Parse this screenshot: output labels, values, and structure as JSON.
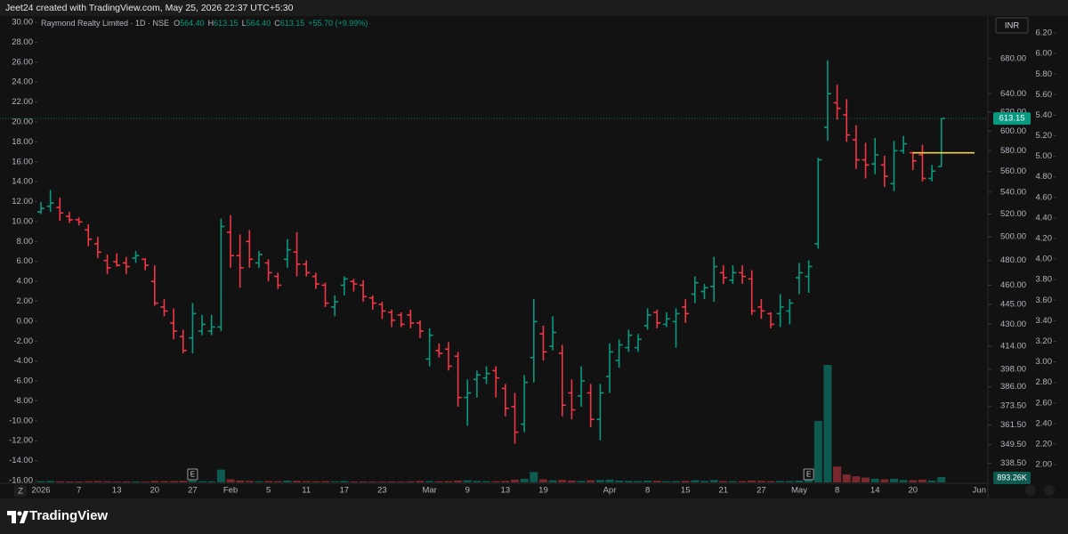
{
  "header": "Jeet24 created with TradingView.com, May 25, 2026 22:37 UTC+5:30",
  "footer_brand": "TradingView",
  "chart_data": {
    "type": "ohlc",
    "legend_name": "Raymond Realty Limited · 1D · NSE",
    "legend_items": [
      {
        "label": "O",
        "value": "564.40"
      },
      {
        "label": "H",
        "value": "613.15"
      },
      {
        "label": "L",
        "value": "564.40"
      },
      {
        "label": "C",
        "value": "613.15"
      }
    ],
    "legend_change": "+55.70 (+9.99%)",
    "currency": "INR",
    "last_price_label": "613.15",
    "volume_label": "893.26K",
    "time_button": "Z",
    "up_color": "#089981",
    "down_color": "#f23645",
    "volume_up_color": "#0e5a51",
    "volume_down_color": "#7a2a2f",
    "drawing_price": 578,
    "drawing_color": "#f5d142",
    "log_scale": true,
    "ylim": [
      327.4,
      731.7
    ],
    "yticks": [
      {
        "value": 680,
        "label": "680.00"
      },
      {
        "value": 640,
        "label": "640.00"
      },
      {
        "value": 620,
        "label": "620.00"
      },
      {
        "value": 600,
        "label": "600.00"
      },
      {
        "value": 580,
        "label": "580.00"
      },
      {
        "value": 560,
        "label": "560.00"
      },
      {
        "value": 540,
        "label": "540.00"
      },
      {
        "value": 520,
        "label": "520.00"
      },
      {
        "value": 500,
        "label": "500.00"
      },
      {
        "value": 480,
        "label": "480.00"
      },
      {
        "value": 460,
        "label": "460.00"
      },
      {
        "value": 445,
        "label": "445.00"
      },
      {
        "value": 430,
        "label": "430.00"
      },
      {
        "value": 414,
        "label": "414.00"
      },
      {
        "value": 398,
        "label": "398.00"
      },
      {
        "value": 386,
        "label": "386.00"
      },
      {
        "value": 373.5,
        "label": "373.50"
      },
      {
        "value": 361.5,
        "label": "361.50"
      },
      {
        "value": 349.5,
        "label": "349.50"
      },
      {
        "value": 338.5,
        "label": "338.50"
      }
    ],
    "y2lim": [
      -16.18,
      30.63
    ],
    "y2ticks": [
      {
        "value": 30,
        "label": "30.00"
      },
      {
        "value": 28,
        "label": "28.00"
      },
      {
        "value": 26,
        "label": "26.00"
      },
      {
        "value": 24,
        "label": "24.00"
      },
      {
        "value": 22,
        "label": "22.00"
      },
      {
        "value": 20,
        "label": "20.00"
      },
      {
        "value": 18,
        "label": "18.00"
      },
      {
        "value": 16,
        "label": "16.00"
      },
      {
        "value": 14,
        "label": "14.00"
      },
      {
        "value": 12,
        "label": "12.00"
      },
      {
        "value": 10,
        "label": "10.00"
      },
      {
        "value": 8,
        "label": "8.00"
      },
      {
        "value": 6,
        "label": "6.00"
      },
      {
        "value": 4,
        "label": "4.00"
      },
      {
        "value": 2,
        "label": "2.00"
      },
      {
        "value": 0,
        "label": "0.00"
      },
      {
        "value": -2,
        "label": "-2.00"
      },
      {
        "value": -4,
        "label": "-4.00"
      },
      {
        "value": -6,
        "label": "-6.00"
      },
      {
        "value": -8,
        "label": "-8.00"
      },
      {
        "value": -10,
        "label": "-10.00"
      },
      {
        "value": -12,
        "label": "-12.00"
      },
      {
        "value": -14,
        "label": "-14.00"
      },
      {
        "value": -16,
        "label": "-16.00"
      }
    ],
    "y3lim": [
      1.827,
      6.365
    ],
    "y3ticks": [
      {
        "value": 6.2,
        "label": "6.20"
      },
      {
        "value": 6,
        "label": "6.00"
      },
      {
        "value": 5.8,
        "label": "5.80"
      },
      {
        "value": 5.6,
        "label": "5.60"
      },
      {
        "value": 5.4,
        "label": "5.40"
      },
      {
        "value": 5.2,
        "label": "5.20"
      },
      {
        "value": 5,
        "label": "5.00"
      },
      {
        "value": 4.8,
        "label": "4.80"
      },
      {
        "value": 4.6,
        "label": "4.60"
      },
      {
        "value": 4.4,
        "label": "4.40"
      },
      {
        "value": 4.2,
        "label": "4.20"
      },
      {
        "value": 4,
        "label": "4.00"
      },
      {
        "value": 3.8,
        "label": "3.80"
      },
      {
        "value": 3.6,
        "label": "3.60"
      },
      {
        "value": 3.4,
        "label": "3.40"
      },
      {
        "value": 3.2,
        "label": "3.20"
      },
      {
        "value": 3,
        "label": "3.00"
      },
      {
        "value": 2.8,
        "label": "2.80"
      },
      {
        "value": 2.6,
        "label": "2.60"
      },
      {
        "value": 2.4,
        "label": "2.40"
      },
      {
        "value": 2.2,
        "label": "2.20"
      },
      {
        "value": 2,
        "label": "2.00"
      }
    ],
    "categories": [
      "2026",
      null,
      null,
      null,
      "7",
      null,
      null,
      null,
      "13",
      null,
      null,
      null,
      "20",
      null,
      null,
      null,
      "27",
      null,
      null,
      null,
      "Feb",
      null,
      null,
      null,
      "5",
      null,
      null,
      null,
      "11",
      null,
      null,
      null,
      "17",
      null,
      null,
      null,
      "23",
      null,
      null,
      null,
      null,
      "Mar",
      null,
      null,
      null,
      "9",
      null,
      null,
      null,
      "13",
      null,
      null,
      null,
      "19",
      null,
      null,
      null,
      null,
      null,
      null,
      "Apr",
      null,
      null,
      null,
      "8",
      null,
      null,
      null,
      "15",
      null,
      null,
      null,
      "21",
      null,
      null,
      null,
      "27",
      null,
      null,
      null,
      "May",
      null,
      null,
      null,
      "8",
      null,
      null,
      null,
      "14",
      null,
      null,
      null,
      "20",
      null,
      null,
      null,
      null,
      null,
      null,
      "Jun"
    ],
    "earnings_markers": [
      null,
      null,
      null,
      null,
      null,
      null,
      null,
      null,
      null,
      null,
      null,
      null,
      null,
      null,
      null,
      null,
      "E",
      null,
      null,
      null,
      null,
      null,
      null,
      null,
      null,
      null,
      null,
      null,
      null,
      null,
      null,
      null,
      null,
      null,
      null,
      null,
      null,
      null,
      null,
      null,
      null,
      null,
      null,
      null,
      null,
      null,
      null,
      null,
      null,
      null,
      null,
      null,
      null,
      null,
      null,
      null,
      null,
      null,
      null,
      null,
      null,
      null,
      null,
      null,
      null,
      null,
      null,
      null,
      null,
      null,
      null,
      null,
      null,
      null,
      null,
      null,
      null,
      null,
      null,
      null,
      null,
      "E",
      null,
      null,
      null,
      null,
      null,
      null,
      null,
      null,
      null,
      null,
      null,
      null,
      null,
      null,
      null,
      null,
      null,
      null
    ],
    "open": [
      522,
      527,
      526,
      518,
      515,
      506,
      494,
      480,
      479,
      478,
      482,
      481,
      463,
      443,
      431,
      421,
      420,
      425,
      425,
      428,
      504,
      484,
      496,
      478,
      478,
      467,
      481,
      487,
      477,
      467,
      460,
      443,
      460,
      463,
      460,
      450,
      445,
      439,
      437,
      437,
      431,
      405,
      411,
      412,
      407,
      379,
      391,
      392,
      397,
      385,
      373,
      362,
      406,
      423,
      414,
      409,
      382,
      380,
      382,
      365,
      393,
      404,
      413,
      413,
      429,
      439,
      430,
      432,
      443,
      453,
      455,
      459,
      470,
      464,
      470,
      465,
      443,
      438,
      438,
      440,
      466,
      467,
      494,
      604,
      630,
      617,
      591,
      571,
      567,
      566,
      548,
      580,
      578,
      576,
      553,
      564.4,
      null,
      null,
      null,
      null
    ],
    "high": [
      531,
      542,
      535,
      522,
      517,
      511,
      500,
      485,
      486,
      483,
      488,
      482,
      476,
      449,
      442,
      426,
      446,
      437,
      437,
      516,
      519,
      502,
      506,
      488,
      481,
      470,
      498,
      504,
      480,
      470,
      462,
      452,
      467,
      465,
      464,
      452,
      447,
      441,
      439,
      441,
      433,
      427,
      416,
      417,
      410,
      391,
      397,
      400,
      400,
      388,
      382,
      394,
      449,
      429,
      436,
      415,
      391,
      400,
      388,
      388,
      416,
      419,
      426,
      423,
      442,
      441,
      439,
      442,
      449,
      467,
      461,
      483,
      476,
      476,
      476,
      472,
      449,
      439,
      453,
      449,
      478,
      480,
      573,
      678,
      650,
      634,
      606,
      588,
      593,
      575,
      590,
      595,
      579,
      586,
      566,
      613.15,
      null,
      null,
      null,
      null
    ],
    "low": [
      520,
      522,
      514,
      512,
      510,
      492,
      482,
      469,
      475,
      469,
      478,
      472,
      444,
      436,
      419,
      409,
      409,
      422,
      422,
      425,
      474,
      458,
      474,
      474,
      463,
      457,
      474,
      467,
      467,
      457,
      443,
      436,
      452,
      455,
      447,
      441,
      434,
      428,
      428,
      427,
      420,
      400,
      406,
      397,
      373,
      361,
      379,
      388,
      379,
      367,
      350,
      357,
      389,
      404,
      411,
      367,
      365,
      373,
      360,
      352,
      382,
      399,
      410,
      410,
      426,
      427,
      428,
      413,
      431,
      446,
      449,
      447,
      461,
      461,
      461,
      437,
      434,
      427,
      428,
      430,
      453,
      454,
      490,
      590,
      612,
      589,
      562,
      553,
      557,
      545,
      541,
      577,
      561,
      550,
      550,
      564.4,
      null,
      null,
      null,
      null
    ],
    "close": [
      525,
      530,
      521,
      515,
      513,
      498,
      487,
      474,
      476,
      475,
      484,
      476,
      446,
      440,
      425,
      411,
      438,
      430,
      428,
      509,
      484,
      474,
      481,
      485,
      470,
      460,
      489,
      477,
      470,
      461,
      446,
      447,
      465,
      461,
      451,
      446,
      440,
      433,
      430,
      431,
      425,
      422,
      409,
      400,
      379,
      382,
      394,
      395,
      392,
      372,
      357,
      389,
      432,
      410,
      424,
      374,
      371,
      390,
      365,
      382,
      410,
      415,
      422,
      419,
      437,
      431,
      434,
      438,
      438,
      462,
      458,
      475,
      466,
      470,
      467,
      440,
      440,
      430,
      443,
      446,
      470,
      475,
      571,
      640,
      624,
      596,
      571,
      566,
      576,
      555,
      580,
      587,
      570,
      553,
      560,
      613.15,
      null,
      null,
      null,
      null
    ],
    "volume": [
      200000,
      250000,
      180000,
      150000,
      150000,
      200000,
      220000,
      180000,
      150000,
      160000,
      150000,
      140000,
      250000,
      200000,
      220000,
      250000,
      300000,
      200000,
      180000,
      2100000,
      500000,
      300000,
      250000,
      200000,
      220000,
      200000,
      300000,
      250000,
      200000,
      180000,
      200000,
      180000,
      220000,
      160000,
      170000,
      160000,
      150000,
      160000,
      150000,
      170000,
      250000,
      220000,
      180000,
      200000,
      300000,
      350000,
      250000,
      200000,
      200000,
      250000,
      450000,
      600000,
      1700000,
      500000,
      350000,
      400000,
      300000,
      250000,
      350000,
      400000,
      450000,
      300000,
      250000,
      220000,
      300000,
      250000,
      200000,
      220000,
      250000,
      350000,
      250000,
      400000,
      220000,
      200000,
      200000,
      300000,
      250000,
      200000,
      250000,
      220000,
      300000,
      1300000,
      10100000,
      19300000,
      2600000,
      1300000,
      1000000,
      800000,
      600000,
      500000,
      600000,
      400000,
      350000,
      450000,
      300000,
      893260,
      null,
      null,
      null,
      null
    ]
  }
}
